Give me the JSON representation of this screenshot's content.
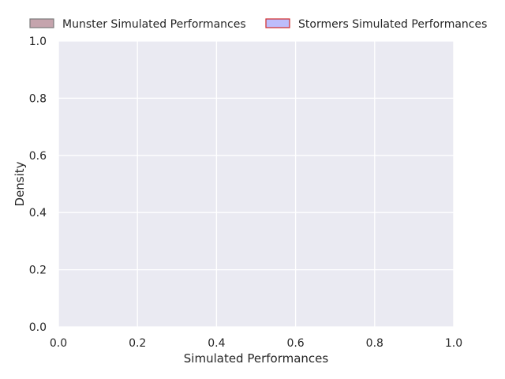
{
  "chart_data": {
    "type": "area",
    "title": "",
    "xlabel": "Simulated Performances",
    "ylabel": "Density",
    "xlim": [
      0.0,
      1.0
    ],
    "ylim": [
      0.0,
      1.0
    ],
    "xticks": [
      "0.0",
      "0.2",
      "0.4",
      "0.6",
      "0.8",
      "1.0"
    ],
    "yticks": [
      "0.0",
      "0.2",
      "0.4",
      "0.6",
      "0.8",
      "1.0"
    ],
    "grid": true,
    "legend_placement": "top",
    "series": [
      {
        "name": "Munster Simulated Performances",
        "values": [],
        "color": "#8b4a5c",
        "edge_color": "#7a7a7a"
      },
      {
        "name": "Stormers Simulated Performances",
        "values": [],
        "color": "#7b7bf7",
        "edge_color": "#d02828"
      }
    ],
    "colors": {
      "plot_background": "#eaeaf2",
      "grid": "#ffffff"
    }
  }
}
